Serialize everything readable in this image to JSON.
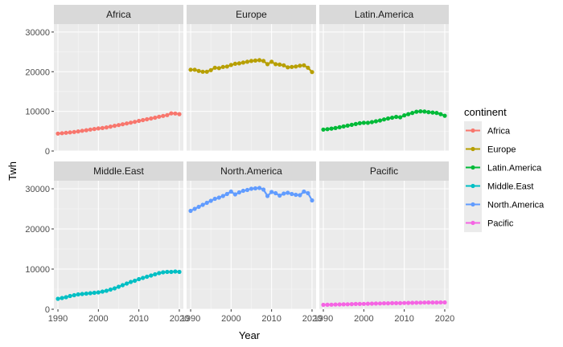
{
  "chart_data": {
    "type": "line",
    "facet": "continent",
    "xlabel": "Year",
    "ylabel": "Twh",
    "xlim": [
      1989,
      2021
    ],
    "ylim": [
      0,
      32000
    ],
    "x_ticks": [
      1990,
      2000,
      2010,
      2020
    ],
    "y_ticks": [
      0,
      10000,
      20000,
      30000
    ],
    "x_tick_labels": [
      "1990",
      "2000",
      "2010",
      "2020"
    ],
    "y_tick_labels": [
      "0",
      "10000",
      "20000",
      "30000"
    ],
    "legend": {
      "title": "continent",
      "position": "right"
    },
    "grid": true,
    "x": [
      1990,
      1991,
      1992,
      1993,
      1994,
      1995,
      1996,
      1997,
      1998,
      1999,
      2000,
      2001,
      2002,
      2003,
      2004,
      2005,
      2006,
      2007,
      2008,
      2009,
      2010,
      2011,
      2012,
      2013,
      2014,
      2015,
      2016,
      2017,
      2018,
      2019,
      2020
    ],
    "series": [
      {
        "name": "Africa",
        "color": "#F8766D",
        "values": [
          4400,
          4500,
          4600,
          4700,
          4800,
          4950,
          5100,
          5250,
          5400,
          5550,
          5700,
          5800,
          5950,
          6150,
          6350,
          6550,
          6750,
          6950,
          7150,
          7350,
          7600,
          7800,
          8000,
          8200,
          8400,
          8650,
          8850,
          9050,
          9500,
          9450,
          9300
        ]
      },
      {
        "name": "Europe",
        "color": "#B79F00",
        "values": [
          20500,
          20500,
          20200,
          20000,
          20000,
          20400,
          21000,
          20900,
          21200,
          21300,
          21700,
          22000,
          22100,
          22300,
          22500,
          22700,
          22800,
          22900,
          22700,
          21900,
          22500,
          21900,
          21800,
          21600,
          21100,
          21200,
          21300,
          21500,
          21600,
          21000,
          19900
        ]
      },
      {
        "name": "Latin.America",
        "color": "#00BA38",
        "values": [
          5400,
          5500,
          5650,
          5800,
          6000,
          6200,
          6400,
          6600,
          6800,
          7000,
          7100,
          7100,
          7300,
          7500,
          7700,
          7950,
          8200,
          8400,
          8600,
          8500,
          9000,
          9300,
          9600,
          9900,
          10000,
          9950,
          9800,
          9700,
          9600,
          9300,
          8900
        ]
      },
      {
        "name": "Middle.East",
        "color": "#00BFC4",
        "values": [
          2600,
          2800,
          3000,
          3300,
          3500,
          3700,
          3800,
          3900,
          4000,
          4100,
          4200,
          4400,
          4600,
          4900,
          5200,
          5600,
          6000,
          6400,
          6800,
          7100,
          7500,
          7800,
          8100,
          8400,
          8700,
          9000,
          9200,
          9300,
          9300,
          9400,
          9300
        ]
      },
      {
        "name": "North.America",
        "color": "#619CFF",
        "values": [
          24500,
          25000,
          25500,
          26000,
          26500,
          27000,
          27500,
          27800,
          28200,
          28700,
          29300,
          28600,
          29100,
          29500,
          29700,
          30000,
          30100,
          30200,
          29800,
          28200,
          29200,
          28900,
          28300,
          28800,
          29000,
          28700,
          28500,
          28400,
          29300,
          28900,
          27100
        ]
      },
      {
        "name": "Pacific",
        "color": "#F564E3",
        "values": [
          1100,
          1120,
          1150,
          1180,
          1200,
          1220,
          1250,
          1280,
          1310,
          1330,
          1350,
          1380,
          1400,
          1420,
          1440,
          1470,
          1490,
          1510,
          1530,
          1520,
          1560,
          1580,
          1600,
          1620,
          1640,
          1660,
          1670,
          1680,
          1690,
          1700,
          1700
        ]
      }
    ],
    "facets": [
      {
        "strip": "Africa"
      },
      {
        "strip": "Europe"
      },
      {
        "strip": "Latin.America"
      },
      {
        "strip": "Middle.East"
      },
      {
        "strip": "North.America"
      },
      {
        "strip": "Pacific"
      }
    ]
  }
}
